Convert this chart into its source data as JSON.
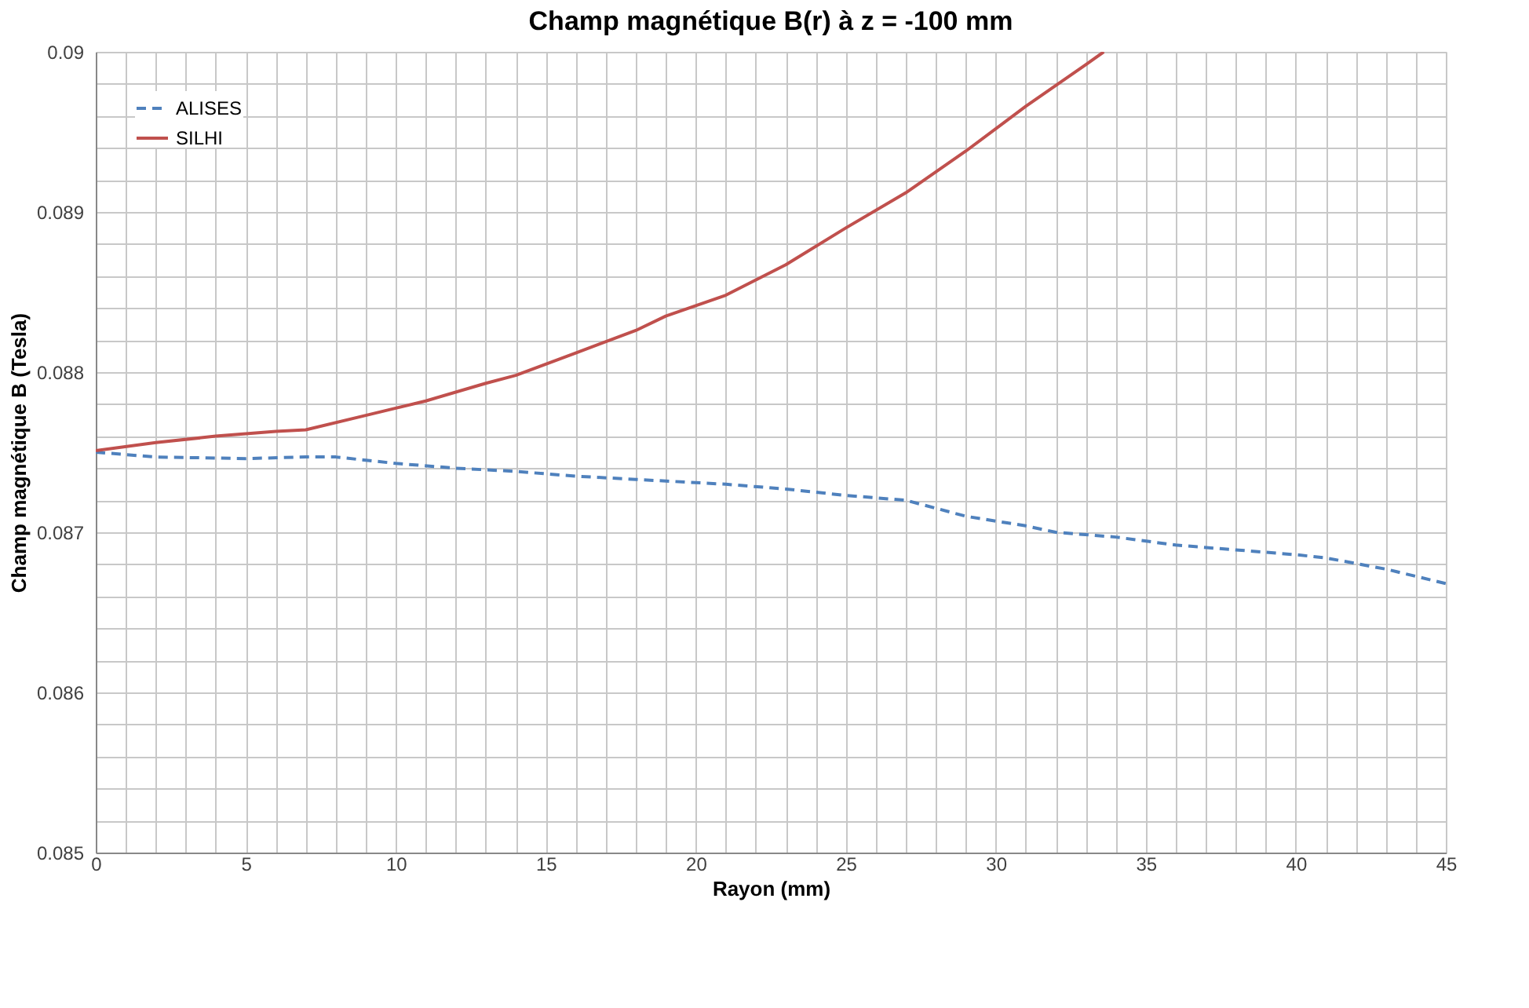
{
  "chart_data": {
    "type": "line",
    "title": "Champ magnétique B(r) à z = -100 mm",
    "xlabel": "Rayon (mm)",
    "ylabel": "Champ magnétique B (Tesla)",
    "xlim": [
      0,
      45
    ],
    "ylim": [
      0.085,
      0.09
    ],
    "xticks": [
      0,
      {
        "value": 1,
        "label": null
      },
      {
        "value": 2,
        "label": null
      },
      {
        "value": 3,
        "label": null
      },
      {
        "value": 4,
        "label": null
      },
      5,
      {
        "value": 6,
        "label": null
      },
      {
        "value": 7,
        "label": null
      },
      {
        "value": 8,
        "label": null
      },
      {
        "value": 9,
        "label": null
      },
      10,
      {
        "value": 11,
        "label": null
      },
      {
        "value": 12,
        "label": null
      },
      {
        "value": 13,
        "label": null
      },
      {
        "value": 14,
        "label": null
      },
      15,
      {
        "value": 16,
        "label": null
      },
      {
        "value": 17,
        "label": null
      },
      {
        "value": 18,
        "label": null
      },
      {
        "value": 19,
        "label": null
      },
      20,
      {
        "value": 21,
        "label": null
      },
      {
        "value": 22,
        "label": null
      },
      {
        "value": 23,
        "label": null
      },
      {
        "value": 24,
        "label": null
      },
      25,
      {
        "value": 26,
        "label": null
      },
      {
        "value": 27,
        "label": null
      },
      {
        "value": 28,
        "label": null
      },
      {
        "value": 29,
        "label": null
      },
      30,
      {
        "value": 31,
        "label": null
      },
      {
        "value": 32,
        "label": null
      },
      {
        "value": 33,
        "label": null
      },
      {
        "value": 34,
        "label": null
      },
      35,
      {
        "value": 36,
        "label": null
      },
      {
        "value": 37,
        "label": null
      },
      {
        "value": 38,
        "label": null
      },
      {
        "value": 39,
        "label": null
      },
      40,
      {
        "value": 41,
        "label": null
      },
      {
        "value": 42,
        "label": null
      },
      {
        "value": 43,
        "label": null
      },
      {
        "value": 44,
        "label": null
      },
      45
    ],
    "yticks": [
      0.085,
      {
        "value": 0.0852,
        "label": null
      },
      {
        "value": 0.0854,
        "label": null
      },
      {
        "value": 0.0856,
        "label": null
      },
      {
        "value": 0.0858,
        "label": null
      },
      0.086,
      {
        "value": 0.0862,
        "label": null
      },
      {
        "value": 0.0864,
        "label": null
      },
      {
        "value": 0.0866,
        "label": null
      },
      {
        "value": 0.0868,
        "label": null
      },
      0.087,
      {
        "value": 0.0872,
        "label": null
      },
      {
        "value": 0.0874,
        "label": null
      },
      {
        "value": 0.0876,
        "label": null
      },
      {
        "value": 0.0878,
        "label": null
      },
      0.088,
      {
        "value": 0.0882,
        "label": null
      },
      {
        "value": 0.0884,
        "label": null
      },
      {
        "value": 0.0886,
        "label": null
      },
      {
        "value": 0.0888,
        "label": null
      },
      0.089,
      {
        "value": 0.0892,
        "label": null
      },
      {
        "value": 0.0894,
        "label": null
      },
      {
        "value": 0.0896,
        "label": null
      },
      {
        "value": 0.0898,
        "label": null
      },
      0.09
    ],
    "grid": true,
    "legend": "top left",
    "marker": "none",
    "series": [
      {
        "name": "ALISES",
        "color": "#4f81bd",
        "line_style": "dashed",
        "x": [
          0,
          2,
          5,
          7,
          8,
          10,
          12,
          14,
          16,
          18,
          20,
          21,
          23,
          25,
          27,
          29,
          31,
          32,
          34,
          36,
          38,
          40,
          41,
          43,
          45
        ],
        "values": [
          0.0875,
          0.08747,
          0.08746,
          0.08747,
          0.08747,
          0.08743,
          0.0874,
          0.08738,
          0.08735,
          0.08733,
          0.08731,
          0.0873,
          0.08727,
          0.08723,
          0.0872,
          0.0871,
          0.08704,
          0.087,
          0.08697,
          0.08692,
          0.08689,
          0.08686,
          0.08684,
          0.08677,
          0.08668
        ]
      },
      {
        "name": "SILHI",
        "color": "#c0504d",
        "line_style": "solid",
        "x": [
          0,
          2,
          4,
          6,
          7,
          9,
          11,
          13,
          14,
          16,
          18,
          19,
          21,
          23,
          25,
          27,
          29,
          31,
          33,
          33.6
        ],
        "values": [
          0.08751,
          0.08756,
          0.0876,
          0.08763,
          0.08764,
          0.08773,
          0.08782,
          0.08793,
          0.08798,
          0.08812,
          0.08826,
          0.08835,
          0.08848,
          0.08867,
          0.0889,
          0.08912,
          0.08938,
          0.08966,
          0.08992,
          0.09
        ]
      }
    ]
  }
}
